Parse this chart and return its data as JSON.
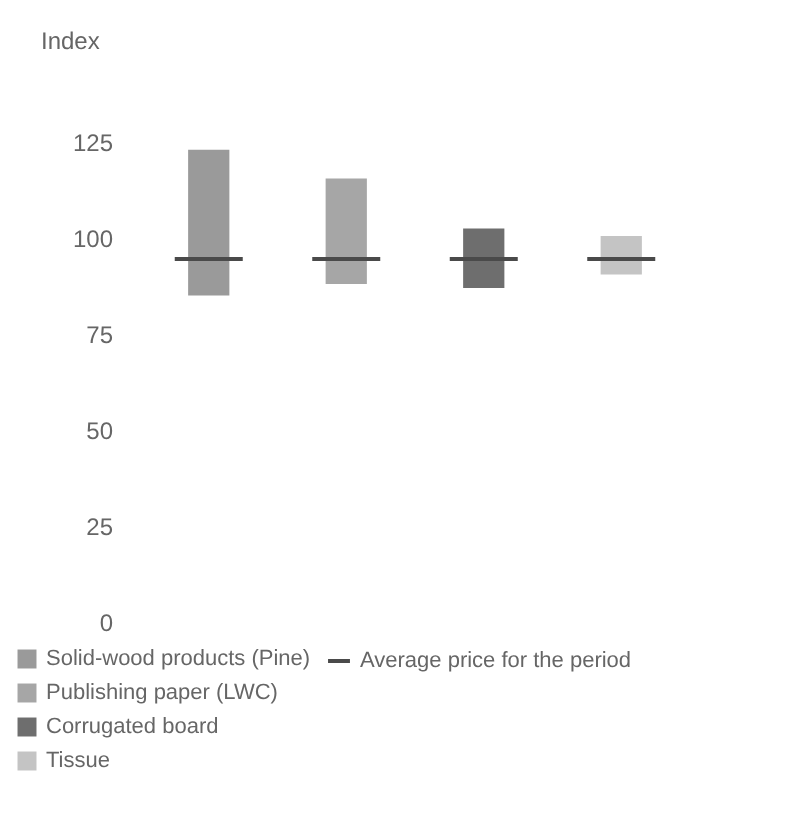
{
  "chart_data": {
    "type": "bar",
    "ylabel": "Index",
    "categories": [
      null
    ],
    "series": [
      {
        "name": "Solid-wood products (Pine)",
        "color": "#9a9a9a",
        "values": [
          38
        ],
        "base": [
          85
        ]
      },
      {
        "name": "Publishing paper (LWC)",
        "color": "#a6a6a6",
        "values": [
          27.5
        ],
        "base": [
          88
        ]
      },
      {
        "name": "Corrugated board",
        "color": "#6e6e6e",
        "values": [
          15.5
        ],
        "base": [
          87
        ]
      },
      {
        "name": "Tissue",
        "color": "#c4c4c4",
        "values": [
          10
        ],
        "base": [
          90.5
        ]
      }
    ],
    "ref_lines": [
      {
        "axis": "y",
        "value": 94.5,
        "label": "Average price for the period",
        "color": "#4a4a4a"
      }
    ],
    "ylim": [
      0,
      125
    ],
    "yticks": [
      0,
      25,
      50,
      75,
      100,
      125
    ],
    "grid": false,
    "legend": "bottom",
    "tick_labels": "y"
  }
}
